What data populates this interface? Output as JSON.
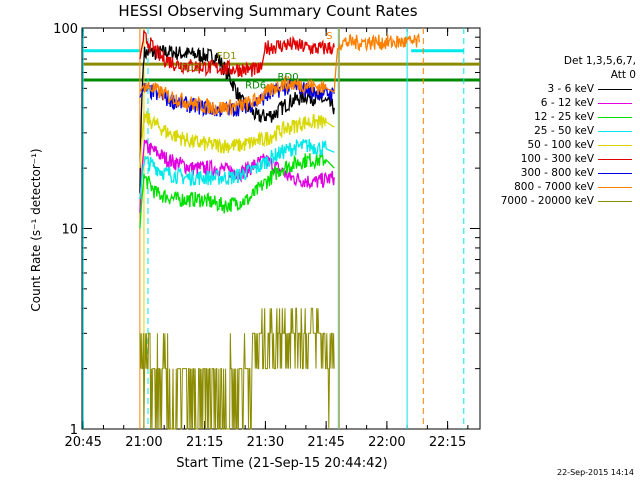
{
  "title": "HESSI Observing Summary Count Rates",
  "xlabel": "Start Time (21-Sep-15 20:44:42)",
  "ylabel": "Count Rate (s⁻¹ detector⁻¹)",
  "footer_stamp": "22-Sep-2015 14:14",
  "legend": {
    "header_line1": "Det 1,3,5,6,7,",
    "header_line2": "Att 0",
    "entries": [
      {
        "label": "3 - 6 keV",
        "color": "#000000"
      },
      {
        "label": "6 - 12 keV",
        "color": "#e000e0"
      },
      {
        "label": "12 - 25 keV",
        "color": "#00e000"
      },
      {
        "label": "25 - 50 keV",
        "color": "#00e8e8"
      },
      {
        "label": "50 - 100 keV",
        "color": "#d8d800"
      },
      {
        "label": "100 - 300 keV",
        "color": "#e00000"
      },
      {
        "label": "300 - 800 keV",
        "color": "#0000e0"
      },
      {
        "label": "800 - 7000 keV",
        "color": "#ff8000"
      },
      {
        "label": "7000 - 20000 keV",
        "color": "#8b8b00"
      }
    ]
  },
  "chart_data": {
    "type": "line",
    "title": "HESSI Observing Summary Count Rates",
    "xlabel": "Start Time (21-Sep-15 20:44:42)",
    "ylabel": "Count Rate (s⁻¹ detector⁻¹)",
    "xlim": [
      "20:45",
      "22:23"
    ],
    "xticks": [
      "20:45",
      "21:00",
      "21:15",
      "21:30",
      "21:45",
      "22:00",
      "22:15"
    ],
    "ylim": [
      1,
      100
    ],
    "yscale": "log",
    "yticks": [
      {
        "value": 1,
        "label": "1"
      },
      {
        "value": 10,
        "label": "10"
      },
      {
        "value": 100,
        "label": "100"
      }
    ],
    "data_window": [
      "20:59",
      "21:47"
    ],
    "series": [
      {
        "name": "3 - 6 keV",
        "color": "#000000",
        "points": [
          [
            "20:59",
            15
          ],
          [
            "21:00",
            75
          ],
          [
            "21:06",
            76
          ],
          [
            "21:12",
            74
          ],
          [
            "21:18",
            72
          ],
          [
            "21:24",
            43
          ],
          [
            "21:28",
            36
          ],
          [
            "21:32",
            37
          ],
          [
            "21:36",
            43
          ],
          [
            "21:40",
            46
          ],
          [
            "21:44",
            44
          ],
          [
            "21:47",
            40
          ]
        ]
      },
      {
        "name": "6 - 12 keV",
        "color": "#e000e0",
        "points": [
          [
            "20:59",
            12
          ],
          [
            "21:00",
            26
          ],
          [
            "21:06",
            22
          ],
          [
            "21:12",
            20
          ],
          [
            "21:18",
            20
          ],
          [
            "21:24",
            19
          ],
          [
            "21:30",
            22
          ],
          [
            "21:36",
            18
          ],
          [
            "21:42",
            17
          ],
          [
            "21:47",
            18
          ]
        ]
      },
      {
        "name": "12 - 25 keV",
        "color": "#00e000",
        "points": [
          [
            "20:59",
            10
          ],
          [
            "21:00",
            18
          ],
          [
            "21:03",
            15
          ],
          [
            "21:08",
            14
          ],
          [
            "21:14",
            14
          ],
          [
            "21:20",
            13
          ],
          [
            "21:26",
            14
          ],
          [
            "21:30",
            17
          ],
          [
            "21:34",
            20
          ],
          [
            "21:40",
            22
          ],
          [
            "21:45",
            22
          ],
          [
            "21:47",
            20
          ]
        ]
      },
      {
        "name": "25 - 50 keV",
        "color": "#00e8e8",
        "points": [
          [
            "20:59",
            14
          ],
          [
            "21:00",
            22
          ],
          [
            "21:05",
            19
          ],
          [
            "21:10",
            18
          ],
          [
            "21:16",
            18
          ],
          [
            "21:22",
            18
          ],
          [
            "21:28",
            20
          ],
          [
            "21:32",
            23
          ],
          [
            "21:36",
            25
          ],
          [
            "21:40",
            26
          ],
          [
            "21:45",
            25
          ],
          [
            "21:47",
            24
          ]
        ]
      },
      {
        "name": "50 - 100 keV",
        "color": "#d8d800",
        "points": [
          [
            "20:59",
            20
          ],
          [
            "21:00",
            36
          ],
          [
            "21:06",
            30
          ],
          [
            "21:12",
            27
          ],
          [
            "21:18",
            26
          ],
          [
            "21:24",
            26
          ],
          [
            "21:30",
            28
          ],
          [
            "21:34",
            31
          ],
          [
            "21:40",
            34
          ],
          [
            "21:45",
            34
          ],
          [
            "21:47",
            32
          ]
        ]
      },
      {
        "name": "100 - 300 keV",
        "color": "#e00000",
        "points": [
          [
            "20:59",
            70
          ],
          [
            "21:00",
            90
          ],
          [
            "21:04",
            72
          ],
          [
            "21:08",
            66
          ],
          [
            "21:14",
            64
          ],
          [
            "21:20",
            63
          ],
          [
            "21:26",
            62
          ],
          [
            "21:29",
            62
          ],
          [
            "21:30",
            80
          ],
          [
            "21:36",
            83
          ],
          [
            "21:42",
            79
          ],
          [
            "21:47",
            80
          ]
        ]
      },
      {
        "name": "300 - 800 keV",
        "color": "#0000e0",
        "points": [
          [
            "20:59",
            45
          ],
          [
            "21:00",
            50
          ],
          [
            "21:06",
            44
          ],
          [
            "21:12",
            41
          ],
          [
            "21:18",
            39
          ],
          [
            "21:24",
            40
          ],
          [
            "21:28",
            43
          ],
          [
            "21:34",
            50
          ],
          [
            "21:38",
            51
          ],
          [
            "21:42",
            48
          ],
          [
            "21:47",
            47
          ]
        ]
      },
      {
        "name": "800 - 7000 keV",
        "color": "#ff8000",
        "points": [
          [
            "20:59",
            48
          ],
          [
            "21:00",
            52
          ],
          [
            "21:06",
            46
          ],
          [
            "21:12",
            42
          ],
          [
            "21:18",
            40
          ],
          [
            "21:24",
            41
          ],
          [
            "21:28",
            44
          ],
          [
            "21:34",
            53
          ],
          [
            "21:40",
            52
          ],
          [
            "21:45",
            50
          ],
          [
            "21:47",
            48
          ],
          [
            "21:48",
            85
          ],
          [
            "22:08",
            85
          ]
        ]
      },
      {
        "name": "7000 - 20000 keV",
        "color": "#8b8b00",
        "points": [
          [
            "20:59",
            3
          ],
          [
            "21:00",
            2
          ],
          [
            "21:06",
            1.5
          ],
          [
            "21:12",
            1.3
          ],
          [
            "21:18",
            1.4
          ],
          [
            "21:24",
            1.6
          ],
          [
            "21:27",
            2.5
          ],
          [
            "21:33",
            3
          ],
          [
            "21:38",
            3.2
          ],
          [
            "21:43",
            3
          ],
          [
            "21:47",
            2
          ]
        ]
      }
    ],
    "reference_lines": [
      {
        "name": "cyan level",
        "color": "#00e8e8",
        "y": 77,
        "segments": [
          [
            "20:45",
            "20:59"
          ],
          [
            "22:06",
            "22:19"
          ]
        ]
      },
      {
        "name": "olive level",
        "color": "#8b8b00",
        "y": 66,
        "segments": [
          [
            "20:45",
            "22:23"
          ]
        ]
      },
      {
        "name": "green level",
        "color": "#008800",
        "y": 55,
        "segments": [
          [
            "20:45",
            "22:23"
          ]
        ]
      }
    ],
    "vertical_markers": [
      {
        "time": "20:45",
        "color": "#00e8e8",
        "style": "solid"
      },
      {
        "time": "20:59",
        "color": "#ff8000",
        "style": "solid"
      },
      {
        "time": "21:00",
        "color": "#d8d800",
        "style": "solid"
      },
      {
        "time": "21:01",
        "color": "#00e8e8",
        "style": "dashed"
      },
      {
        "time": "21:48",
        "color": "#00e8e8",
        "style": "solid"
      },
      {
        "time": "21:48",
        "color": "#ff8000",
        "style": "solid"
      },
      {
        "time": "22:05",
        "color": "#00e8e8",
        "style": "solid"
      },
      {
        "time": "22:09",
        "color": "#ff8000",
        "style": "dashed"
      },
      {
        "time": "22:19",
        "color": "#00e8e8",
        "style": "dashed"
      }
    ],
    "annotations": [
      {
        "text": "FD1",
        "color": "#8b8b00",
        "time": "21:18",
        "value": 70
      },
      {
        "text": "FD2",
        "color": "#8b8b00",
        "time": "21:09",
        "value": 61
      },
      {
        "text": "RD6",
        "color": "#008800",
        "time": "21:25",
        "value": 50
      },
      {
        "text": "RD0",
        "color": "#008800",
        "time": "21:33",
        "value": 55
      },
      {
        "text": "S",
        "color": "#ff8000",
        "time": "21:45",
        "value": 88
      }
    ]
  }
}
